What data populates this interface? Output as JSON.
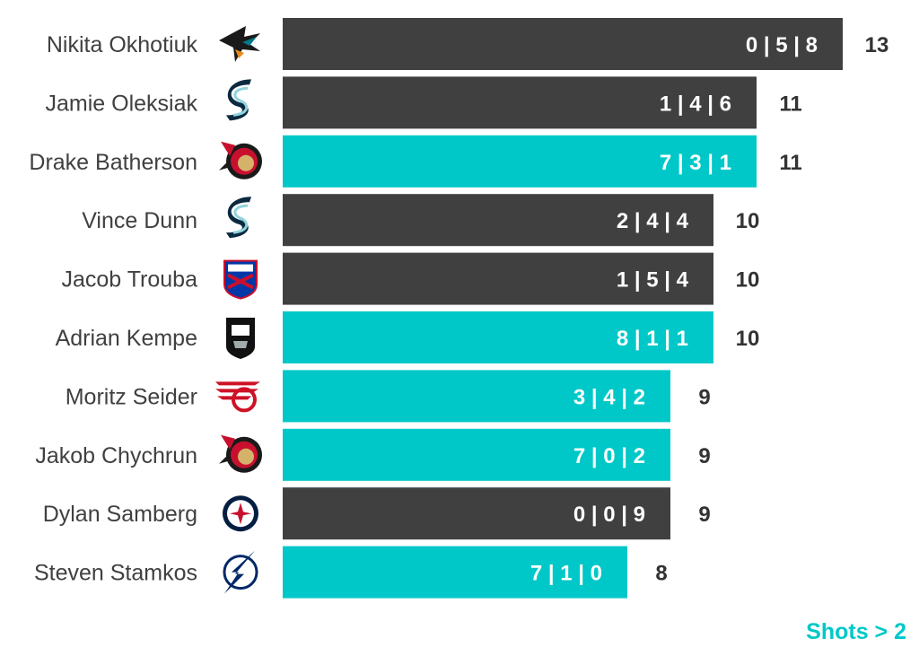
{
  "colors": {
    "dark": "#404040",
    "highlight": "#00c8c8",
    "text": "#404040",
    "total": "#333333"
  },
  "legend": {
    "label": "Shots > 2",
    "color": "#00c8c8"
  },
  "chart_data": {
    "type": "bar",
    "orientation": "horizontal",
    "xlim": [
      0,
      13
    ],
    "grid": false,
    "rows": [
      {
        "name": "Nikita Okhotiuk",
        "team_icon": "sharks-logo-icon",
        "value": 13,
        "breakdown": "0 | 5 | 8",
        "highlight": false
      },
      {
        "name": "Jamie Oleksiak",
        "team_icon": "kraken-logo-icon",
        "value": 11,
        "breakdown": "1 | 4 | 6",
        "highlight": false
      },
      {
        "name": "Drake Batherson",
        "team_icon": "senators-logo-icon",
        "value": 11,
        "breakdown": "7 | 3 | 1",
        "highlight": true
      },
      {
        "name": "Vince Dunn",
        "team_icon": "kraken-logo-icon",
        "value": 10,
        "breakdown": "2 | 4 | 4",
        "highlight": false
      },
      {
        "name": "Jacob Trouba",
        "team_icon": "rangers-logo-icon",
        "value": 10,
        "breakdown": "1 | 5 | 4",
        "highlight": false
      },
      {
        "name": "Adrian Kempe",
        "team_icon": "kings-logo-icon",
        "value": 10,
        "breakdown": "8 | 1 | 1",
        "highlight": true
      },
      {
        "name": "Moritz Seider",
        "team_icon": "red-wings-logo-icon",
        "value": 9,
        "breakdown": "3 | 4 | 2",
        "highlight": true
      },
      {
        "name": "Jakob Chychrun",
        "team_icon": "senators-logo-icon",
        "value": 9,
        "breakdown": "7 | 0 | 2",
        "highlight": true
      },
      {
        "name": "Dylan Samberg",
        "team_icon": "jets-logo-icon",
        "value": 9,
        "breakdown": "0 | 0 | 9",
        "highlight": false
      },
      {
        "name": "Steven Stamkos",
        "team_icon": "lightning-logo-icon",
        "value": 8,
        "breakdown": "7 | 1 | 0",
        "highlight": true
      }
    ]
  }
}
